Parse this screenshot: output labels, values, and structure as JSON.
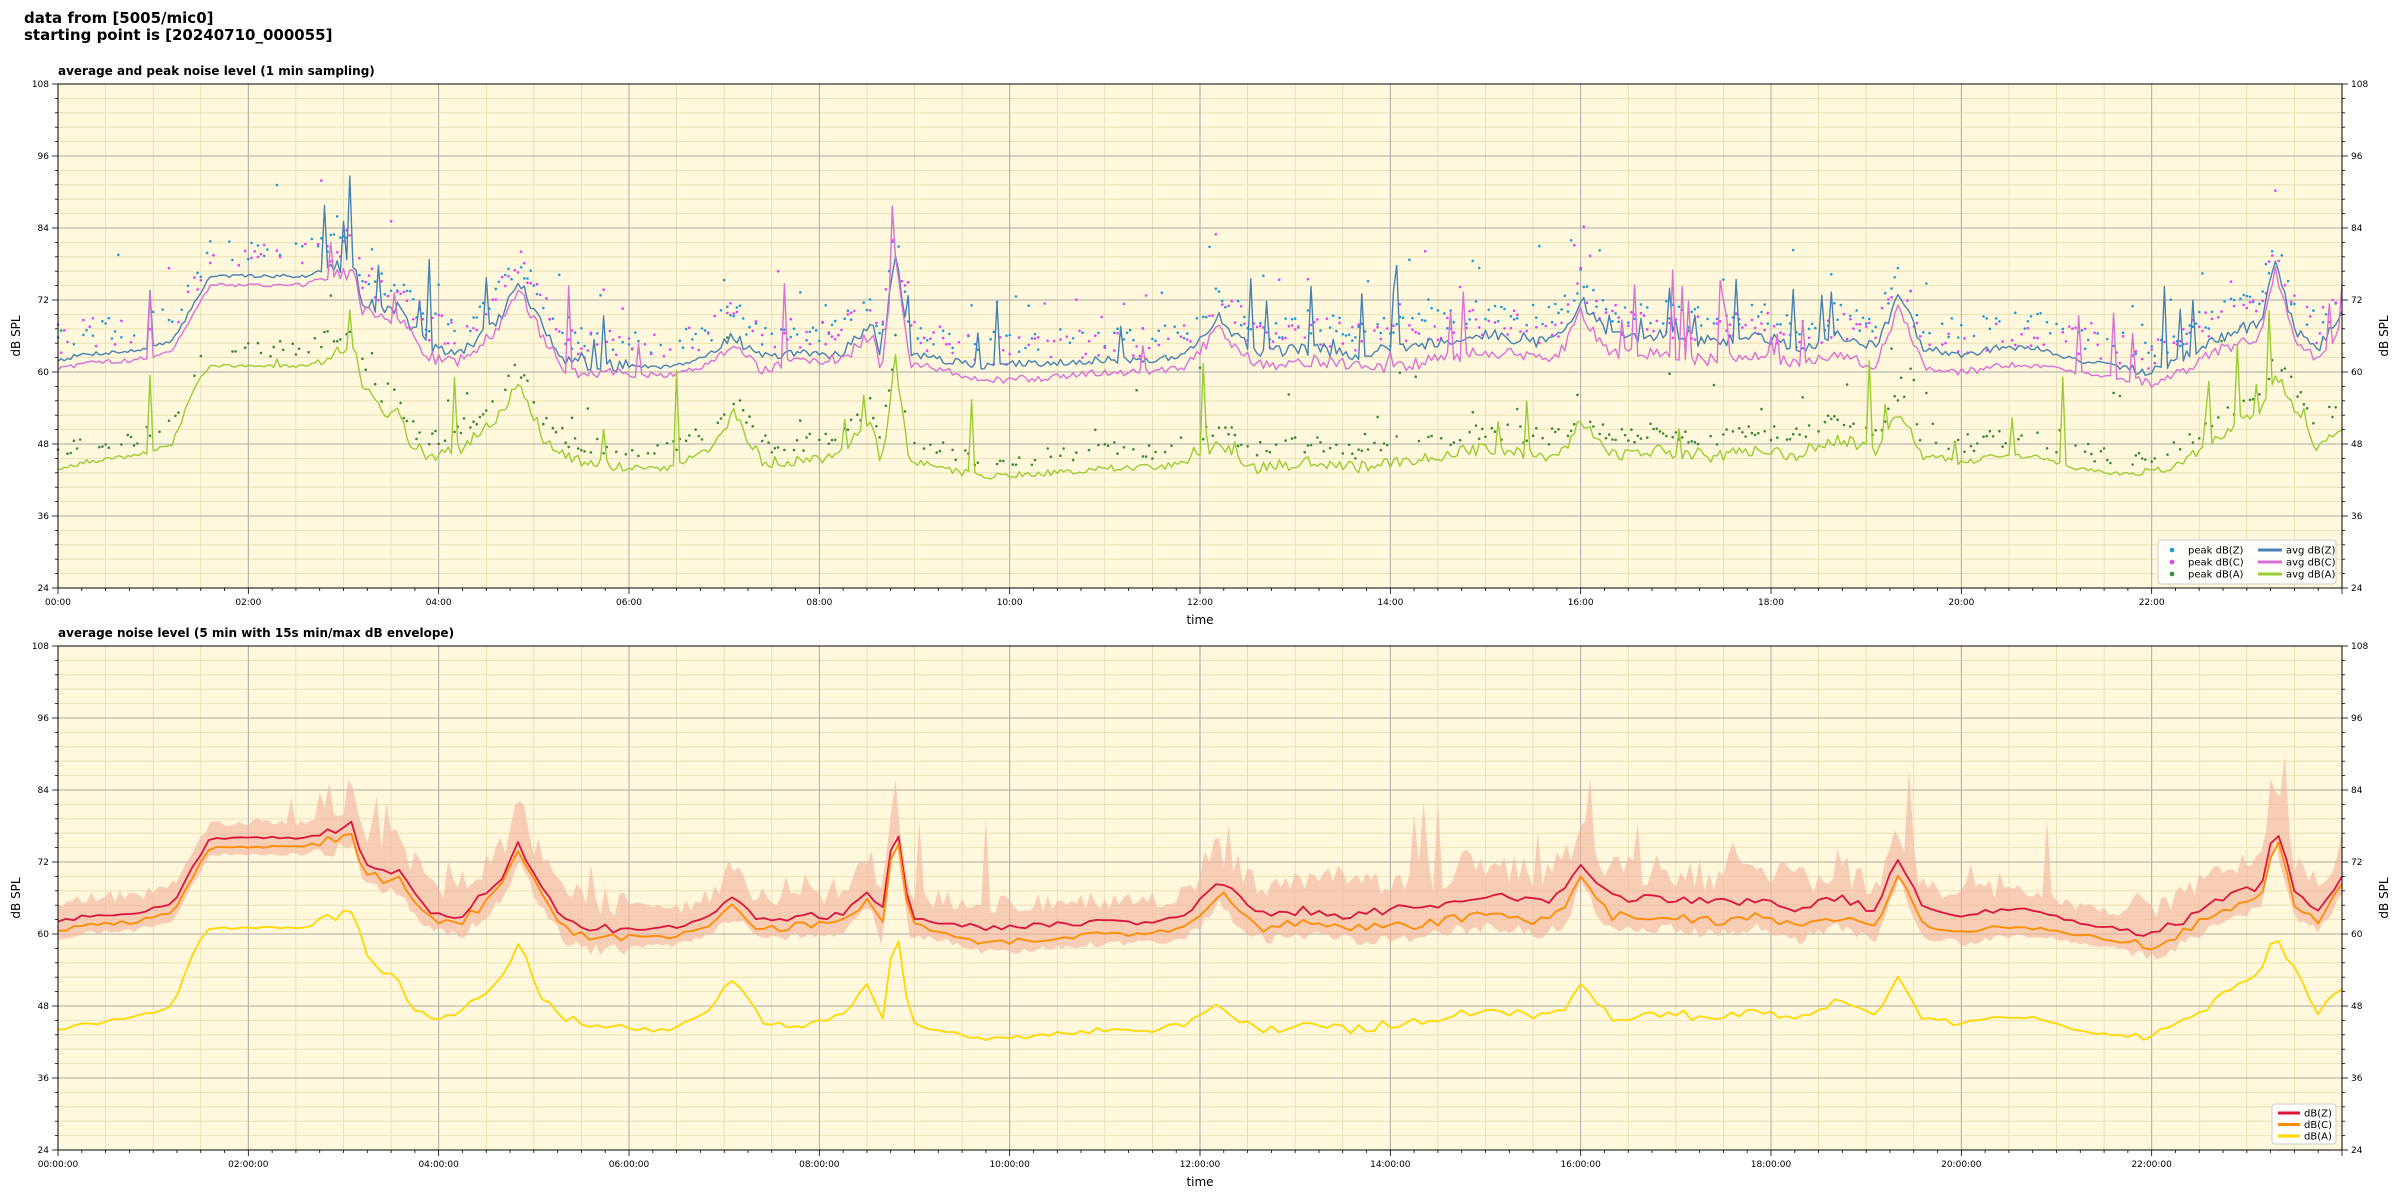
{
  "header": {
    "line1": "data from [5005/mic0]",
    "line2": "starting point is [20240710_000055]"
  },
  "chart_data": [
    {
      "type": "line",
      "title": "average and peak noise level (1 min sampling)",
      "xlabel": "time",
      "ylabel": "dB SPL",
      "xlim": [
        0,
        24
      ],
      "ylim": [
        24,
        108
      ],
      "x_unit": "hours",
      "xtick_values": [
        0,
        2,
        4,
        6,
        8,
        10,
        12,
        14,
        16,
        18,
        20,
        22
      ],
      "xtick_labels": [
        "00:00",
        "02:00",
        "04:00",
        "06:00",
        "08:00",
        "10:00",
        "12:00",
        "14:00",
        "16:00",
        "18:00",
        "20:00",
        "22:00"
      ],
      "yticks": [
        24,
        36,
        48,
        60,
        72,
        84,
        96,
        108
      ],
      "grid": true,
      "legend_position": "bottom-right",
      "legend_columns": 2,
      "series": [
        {
          "name": "peak dB(Z)",
          "kind": "scatter",
          "color": "#1f9bd7",
          "base_key": "Z",
          "offset": 4
        },
        {
          "name": "peak dB(C)",
          "kind": "scatter",
          "color": "#e040fb",
          "base_key": "C",
          "offset": 5
        },
        {
          "name": "peak dB(A)",
          "kind": "scatter",
          "color": "#3a8a3a",
          "base_key": "A",
          "offset": 3
        },
        {
          "name": "avg dB(Z)",
          "kind": "line",
          "color": "#4682b4",
          "base_key": "Z"
        },
        {
          "name": "avg dB(C)",
          "kind": "line",
          "color": "#da70d6",
          "base_key": "C"
        },
        {
          "name": "avg dB(A)",
          "kind": "line",
          "color": "#9acd32",
          "base_key": "A"
        }
      ]
    },
    {
      "type": "line",
      "title": "average noise level (5 min with 15s min/max dB envelope)",
      "xlabel": "time",
      "ylabel": "dB SPL",
      "xlim": [
        0,
        24
      ],
      "ylim": [
        24,
        108
      ],
      "x_unit": "hours",
      "xtick_values": [
        0,
        2,
        4,
        6,
        8,
        10,
        12,
        14,
        16,
        18,
        20,
        22
      ],
      "xtick_labels": [
        "00:00:00",
        "02:00:00",
        "04:00:00",
        "06:00:00",
        "08:00:00",
        "10:00:00",
        "12:00:00",
        "14:00:00",
        "16:00:00",
        "18:00:00",
        "20:00:00",
        "22:00:00"
      ],
      "yticks": [
        24,
        36,
        48,
        60,
        72,
        84,
        96,
        108
      ],
      "grid": true,
      "legend_position": "bottom-right",
      "legend_columns": 1,
      "envelope_color": "#f4b6a0",
      "series": [
        {
          "name": "dB(Z)",
          "kind": "line",
          "color": "#dc143c",
          "base_key": "Z"
        },
        {
          "name": "dB(C)",
          "kind": "line",
          "color": "#ff8c00",
          "base_key": "C"
        },
        {
          "name": "dB(A)",
          "kind": "line",
          "color": "#ffd700",
          "base_key": "A"
        }
      ]
    }
  ],
  "keypoints": {
    "x": [
      0,
      0.3,
      0.8,
      1.2,
      1.45,
      1.6,
      2.6,
      2.75,
      3.1,
      3.2,
      3.45,
      3.55,
      3.7,
      3.9,
      4.2,
      4.6,
      4.85,
      5.1,
      5.35,
      5.6,
      6.1,
      6.4,
      6.7,
      6.85,
      7.1,
      7.4,
      7.8,
      8.2,
      8.55,
      8.65,
      8.8,
      8.95,
      9.3,
      9.7,
      10.3,
      11,
      11.5,
      11.85,
      12.2,
      12.6,
      13.2,
      13.6,
      14,
      14.5,
      14.9,
      15.2,
      15.6,
      15.85,
      16,
      16.3,
      16.8,
      17.4,
      17.9,
      18.3,
      18.7,
      19.1,
      19.35,
      19.6,
      20.0,
      20.4,
      20.8,
      21.2,
      21.6,
      22.0,
      22.3,
      22.6,
      22.95,
      23.15,
      23.3,
      23.5,
      23.75,
      24
    ],
    "Z": [
      62,
      63,
      63.5,
      65,
      72,
      76,
      76,
      77,
      78,
      72,
      70,
      71,
      68,
      64,
      63,
      68,
      75,
      67,
      62,
      61,
      61,
      61,
      62,
      63,
      66,
      62,
      63,
      63,
      68,
      62,
      80,
      63,
      62,
      61,
      61.5,
      62,
      62,
      63,
      69,
      63,
      64,
      63,
      64,
      65,
      66,
      66,
      65,
      67,
      72,
      66,
      66,
      65,
      66,
      64,
      66,
      64,
      73,
      64,
      63,
      64,
      64,
      62,
      61,
      60,
      62,
      65,
      67,
      68,
      79,
      67,
      64,
      70
    ],
    "C": [
      60.5,
      61.5,
      62,
      63.5,
      70.5,
      74.5,
      74.5,
      75.5,
      76.5,
      70.5,
      68.5,
      69.5,
      66.5,
      62.5,
      61.5,
      66.5,
      73.5,
      65.5,
      60.5,
      59.5,
      59.5,
      59.5,
      60.5,
      61.5,
      64.5,
      60.5,
      61.5,
      61.5,
      66.5,
      60.5,
      78.5,
      61.5,
      60.5,
      58.5,
      59,
      60,
      60,
      61,
      67,
      61,
      62,
      61,
      61,
      62,
      63,
      63,
      62,
      64,
      70,
      63,
      63,
      62,
      63,
      61,
      63,
      61,
      71,
      61,
      60,
      61,
      61,
      60,
      59,
      58,
      60,
      63,
      65,
      66,
      77,
      65,
      62,
      68
    ],
    "A": [
      44,
      45,
      46,
      48,
      58,
      61,
      61,
      62,
      64,
      58,
      52,
      54,
      48,
      46,
      47,
      52,
      58,
      49,
      46,
      45,
      44,
      44,
      46,
      47,
      53,
      45,
      45,
      46,
      52,
      44,
      62,
      45,
      44,
      42.5,
      43,
      44,
      44,
      45,
      48,
      44,
      45,
      44,
      45,
      46,
      47,
      47,
      46,
      47,
      52,
      46,
      47,
      46,
      47,
      46,
      49,
      47,
      53,
      46,
      45,
      46,
      46,
      44,
      43,
      43,
      45,
      48,
      52,
      54,
      60,
      54,
      47,
      51
    ]
  }
}
